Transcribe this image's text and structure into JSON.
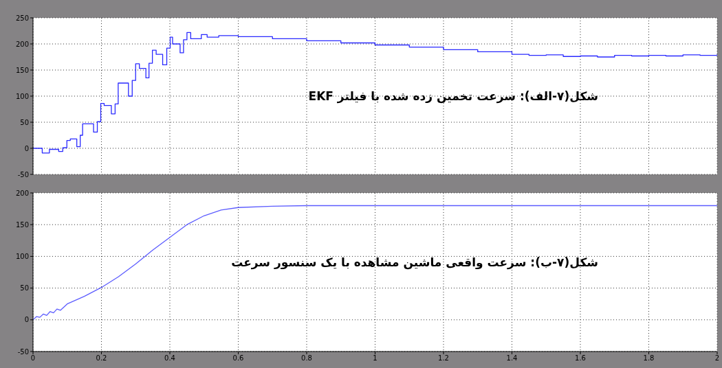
{
  "chart_data": [
    {
      "type": "step",
      "x": [
        0,
        0.027,
        0.048,
        0.075,
        0.087,
        0.099,
        0.109,
        0.128,
        0.138,
        0.145,
        0.177,
        0.188,
        0.198,
        0.208,
        0.229,
        0.24,
        0.249,
        0.279,
        0.29,
        0.3,
        0.311,
        0.33,
        0.339,
        0.349,
        0.36,
        0.379,
        0.391,
        0.401,
        0.408,
        0.43,
        0.44,
        0.45,
        0.461,
        0.492,
        0.509,
        0.543,
        0.6,
        0.7,
        0.8,
        0.9,
        1.0,
        1.1,
        1.2,
        1.3,
        1.4,
        1.45,
        1.5,
        1.55,
        1.6,
        1.65,
        1.7,
        1.75,
        1.8,
        1.85,
        1.9,
        1.95,
        2.0
      ],
      "series": [
        {
          "color": "#2a2aff",
          "values": [
            0,
            -9,
            -2,
            -6,
            1,
            15,
            18,
            3,
            25,
            47,
            31,
            51,
            86,
            82,
            66,
            85,
            125,
            100,
            130,
            162,
            153,
            135,
            163,
            188,
            180,
            160,
            192,
            213,
            200,
            183,
            208,
            222,
            210,
            218,
            213,
            216,
            214,
            210,
            206,
            202,
            198,
            194,
            189,
            185,
            180,
            178,
            179,
            176,
            177,
            175,
            178,
            177,
            178,
            177,
            179,
            178,
            180
          ]
        }
      ],
      "xlim": [
        0,
        2
      ],
      "xticks": [
        0,
        0.2,
        0.4,
        0.6,
        0.8,
        1,
        1.2,
        1.4,
        1.6,
        1.8,
        2
      ],
      "ylim": [
        -50,
        250
      ],
      "yticks": [
        -50,
        0,
        50,
        100,
        150,
        200,
        250
      ],
      "grid": true,
      "tick_labels": "y",
      "annotations": [
        "شکل(۷-الف): سرعت تخمین زده شده با فیلتر EKF"
      ]
    },
    {
      "type": "line",
      "x": [
        0,
        0.01,
        0.02,
        0.03,
        0.04,
        0.05,
        0.06,
        0.07,
        0.08,
        0.1,
        0.15,
        0.2,
        0.25,
        0.3,
        0.35,
        0.4,
        0.45,
        0.5,
        0.55,
        0.6,
        0.7,
        0.8,
        1.0,
        1.5,
        2.0
      ],
      "series": [
        {
          "color": "#5c5cff",
          "values": [
            0,
            5,
            4,
            9,
            7,
            13,
            11,
            17,
            15,
            25,
            37,
            51,
            68,
            88,
            110,
            130,
            150,
            164,
            173,
            177,
            179,
            180,
            180,
            180,
            180
          ]
        }
      ],
      "xlim": [
        0,
        2
      ],
      "xticks": [
        0,
        0.2,
        0.4,
        0.6,
        0.8,
        1,
        1.2,
        1.4,
        1.6,
        1.8,
        2
      ],
      "ylim": [
        -50,
        200
      ],
      "yticks": [
        -50,
        0,
        50,
        100,
        150,
        200
      ],
      "grid": true,
      "annotations": [
        "شکل(۷-ب): سرعت واقعی ماشین مشاهده با یک سنسور سرعت"
      ]
    }
  ]
}
